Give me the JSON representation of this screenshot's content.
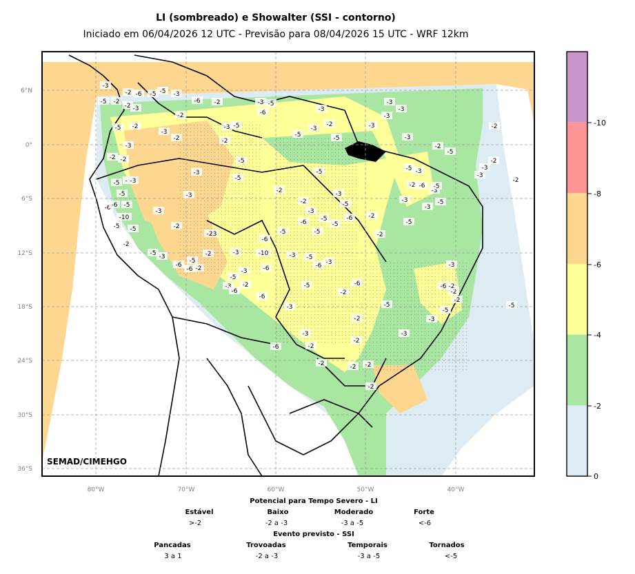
{
  "title": "LI (sombreado) e Showalter (SSI - contorno)",
  "subtitle": "Iniciado em 06/04/2026 12 UTC - Previsão para 08/04/2026 15 UTC - WRF 12km",
  "credit": "SEMAD/CIMEHGO",
  "map": {
    "lat_ticks": [
      "6°N",
      "0°",
      "6°S",
      "12°S",
      "18°S",
      "24°S",
      "30°S",
      "36°S"
    ],
    "lon_ticks": [
      "80°W",
      "70°W",
      "60°W",
      "50°W",
      "40°W"
    ],
    "contour_labels": [
      "-3",
      "-5",
      "-2",
      "-6",
      "-5",
      "-5",
      "-3",
      "-2",
      "-2",
      "-3",
      "-2",
      "-6",
      "-2",
      "-3",
      "-5",
      "-5",
      "-2",
      "-3",
      "-2",
      "-3",
      "-5",
      "-2",
      "-6",
      "-5",
      "-3",
      "-2",
      "-3",
      "-5",
      "-3",
      "-3",
      "-3",
      "-3",
      "-3",
      "-2",
      "-5",
      "-2",
      "-3",
      "-2",
      "-3",
      "-2",
      "-3",
      "-2",
      "-2",
      "-5",
      "-3",
      "-5",
      "-2",
      "-5",
      "-3",
      "-5",
      "-2",
      "-2",
      "-5",
      "-3",
      "-6",
      "-3",
      "-5",
      "-3",
      "-5",
      "-2",
      "-3",
      "-5",
      "-5",
      "-5",
      "-3",
      "-5",
      "-3",
      "-2",
      "-3",
      "-5",
      "-5",
      "-6",
      "-6",
      "-5",
      "-5",
      "-6",
      "-6",
      "-6",
      "-5",
      "-10",
      "-5",
      "-2",
      "-5",
      "-3",
      "-2",
      "-23",
      "-3",
      "-10",
      "-6",
      "-3",
      "-5",
      "-6",
      "-3",
      "-2",
      "-5",
      "-6",
      "-2",
      "-6",
      "-5",
      "-3",
      "-3",
      "-5",
      "-2",
      "-3",
      "-6",
      "-6",
      "-5",
      "-3",
      "-2",
      "-6",
      "-5",
      "-2",
      "-3",
      "-2",
      "-2",
      "-3",
      "-3",
      "-6",
      "-2",
      "-2",
      "-5",
      "-3",
      "-2",
      "-5",
      "-6",
      "-2",
      "-2",
      "-2",
      "-2"
    ],
    "colors": {
      "light_blue": "#dcecf2",
      "green": "#a8e6a1",
      "yellow": "#ffff99",
      "orange": "#fdd68f",
      "red": "#fd9494",
      "purple": "#c996cc"
    }
  },
  "colorbar": {
    "ticks": [
      "-10",
      "-8",
      "-6",
      "-4",
      "-2",
      "0"
    ],
    "colors": [
      "#c996cc",
      "#fd9494",
      "#fdd68f",
      "#ffff99",
      "#a8e6a1",
      "#dcecf2"
    ]
  },
  "legend": {
    "li_title": "Potencial para Tempo Severo - LI",
    "li_categories": [
      {
        "name": "Estável",
        "range": ">-2"
      },
      {
        "name": "Baixo",
        "range": "-2 a -3"
      },
      {
        "name": "Moderado",
        "range": "-3 a -5"
      },
      {
        "name": "Forte",
        "range": "<-6"
      }
    ],
    "ssi_title": "Evento previsto - SSI",
    "ssi_categories": [
      {
        "name": "Pancadas",
        "range": "3 a 1"
      },
      {
        "name": "Trovoadas",
        "range": "-2 a -3"
      },
      {
        "name": "Temporais",
        "range": "-3 a -5"
      },
      {
        "name": "Tornados",
        "range": "<-5"
      }
    ]
  }
}
